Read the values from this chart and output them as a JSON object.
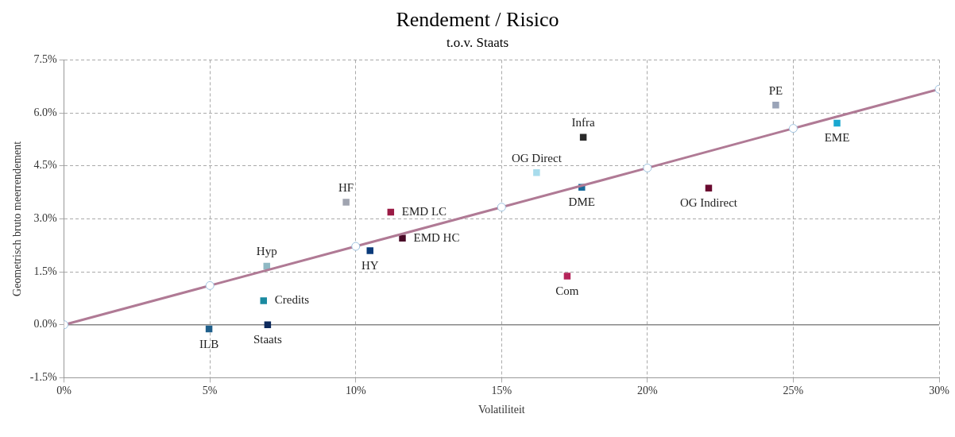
{
  "chart_data": {
    "type": "scatter",
    "title": "Rendement / Risico",
    "subtitle": "t.o.v. Staats",
    "xlabel": "Volatiliteit",
    "ylabel": "Geometrisch bruto meerrendement",
    "xlim": [
      0,
      30
    ],
    "xticks": [
      {
        "value": 0,
        "label": "0%"
      },
      {
        "value": 5,
        "label": "5%"
      },
      {
        "value": 10,
        "label": "10%"
      },
      {
        "value": 15,
        "label": "15%"
      },
      {
        "value": 20,
        "label": "20%"
      },
      {
        "value": 25,
        "label": "25%"
      },
      {
        "value": 30,
        "label": "30%"
      }
    ],
    "ylim": [
      -1.5,
      7.5
    ],
    "yticks": [
      {
        "value": -1.5,
        "label": "-1.5%"
      },
      {
        "value": 0,
        "label": "0.0%"
      },
      {
        "value": 1.5,
        "label": "1.5%"
      },
      {
        "value": 3,
        "label": "3.0%"
      },
      {
        "value": 4.5,
        "label": "4.5%"
      },
      {
        "value": 6,
        "label": "6.0%"
      },
      {
        "value": 7.5,
        "label": "7.5%"
      }
    ],
    "grid": true,
    "legend": false,
    "ref_lines": [
      {
        "axis": "y",
        "value": 0,
        "color": "#888888",
        "line_style": "solid"
      }
    ],
    "marker": "square",
    "series": [
      {
        "type": "line",
        "color": "#b07a95",
        "marker": "circle",
        "line_style": "solid",
        "x": [
          0,
          5,
          10,
          15,
          20,
          25,
          30
        ],
        "values": [
          0,
          1.11,
          2.22,
          3.33,
          4.44,
          5.56,
          6.67
        ]
      },
      {
        "name": "ILB",
        "color": "#1f5f8b",
        "x": [
          4.97
        ],
        "values": [
          -0.12
        ]
      },
      {
        "name": "Staats",
        "color": "#0d2a5c",
        "x": [
          6.98
        ],
        "values": [
          0.0
        ]
      },
      {
        "name": "Credits",
        "color": "#1a8aa0",
        "x": [
          6.84
        ],
        "values": [
          0.68
        ]
      },
      {
        "name": "Hyp",
        "color": "#8fb9c4",
        "x": [
          6.95
        ],
        "values": [
          1.66
        ]
      },
      {
        "name": "HF",
        "color": "#a0a4b0",
        "x": [
          9.67
        ],
        "values": [
          3.47
        ]
      },
      {
        "name": "HY",
        "color": "#0a3a7a",
        "x": [
          10.49
        ],
        "values": [
          2.1
        ]
      },
      {
        "name": "EMD LC",
        "color": "#9b1b45",
        "x": [
          11.2
        ],
        "values": [
          3.19
        ]
      },
      {
        "name": "EMD HC",
        "color": "#4a0a28",
        "x": [
          11.6
        ],
        "values": [
          2.45
        ]
      },
      {
        "name": "OG Direct",
        "color": "#a8dcec",
        "x": [
          16.2
        ],
        "values": [
          4.31
        ]
      },
      {
        "name": "Com",
        "color": "#b5245a",
        "x": [
          17.25
        ],
        "values": [
          1.38
        ]
      },
      {
        "name": "DME",
        "color": "#1a6a9a",
        "x": [
          17.75
        ],
        "values": [
          3.89
        ]
      },
      {
        "name": "Infra",
        "color": "#2a2a2a",
        "x": [
          17.8
        ],
        "values": [
          5.31
        ]
      },
      {
        "name": "OG Indirect",
        "color": "#6a0a30",
        "x": [
          22.1
        ],
        "values": [
          3.87
        ]
      },
      {
        "name": "PE",
        "color": "#9aa4b8",
        "x": [
          24.4
        ],
        "values": [
          6.22
        ]
      },
      {
        "name": "EME",
        "color": "#1aa8d0",
        "x": [
          26.5
        ],
        "values": [
          5.71
        ]
      }
    ]
  }
}
